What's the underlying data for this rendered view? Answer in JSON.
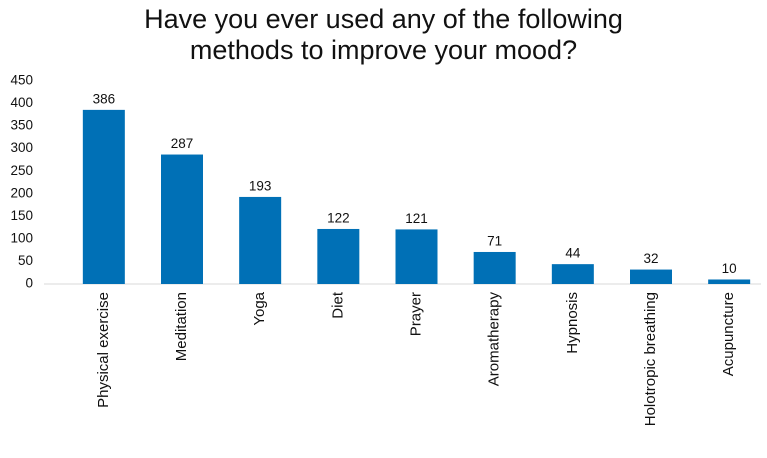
{
  "chart_data": {
    "type": "bar",
    "title": "Have you ever used any of the following methods to improve your mood?",
    "categories": [
      "Physical exercise",
      "Meditation",
      "Yoga",
      "Diet",
      "Prayer",
      "Aromatherapy",
      "Hypnosis",
      "Holotropic breathing",
      "Acupuncture"
    ],
    "values": [
      386,
      287,
      193,
      122,
      121,
      71,
      44,
      32,
      10
    ],
    "color": "#0070b6",
    "ylim": [
      0,
      450
    ],
    "yticks": [
      0,
      50,
      100,
      150,
      200,
      250,
      300,
      350,
      400,
      450
    ],
    "grid": false,
    "data_labels": true
  }
}
